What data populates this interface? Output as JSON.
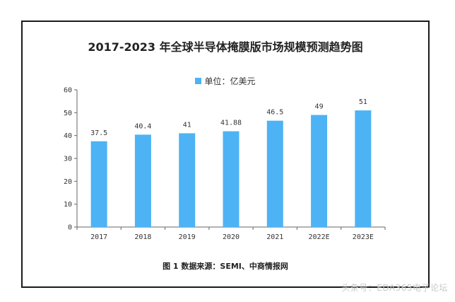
{
  "chart_data": {
    "type": "bar",
    "title": "2017-2023 年全球半导体掩膜版市场规模预测趋势图",
    "legend": "单位：亿美元",
    "categories": [
      "2017",
      "2018",
      "2019",
      "2020",
      "2021",
      "2022E",
      "2023E"
    ],
    "values": [
      37.5,
      40.4,
      41,
      41.88,
      46.5,
      49,
      51
    ],
    "value_labels": [
      "37.5",
      "40.4",
      "41",
      "41.88",
      "46.5",
      "49",
      "51"
    ],
    "ylim": [
      0,
      60
    ],
    "yticks": [
      0,
      10,
      20,
      30,
      40,
      50,
      60
    ],
    "xlabel": "",
    "ylabel": "",
    "bar_color": "#4db3f4",
    "grid": false
  },
  "caption": "图 1  数据来源：SEMI、中商情报网",
  "watermark": "头条号：EDA365电子论坛"
}
